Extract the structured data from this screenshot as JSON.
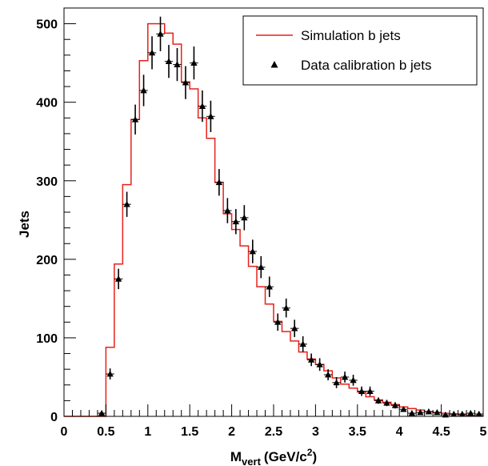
{
  "chart_data": {
    "type": "line",
    "xlabel": {
      "main": "M",
      "sub": "vert",
      "unit_pre": "(GeV/c",
      "unit_sup": "2",
      "unit_post": ")"
    },
    "ylabel": "Jets",
    "xlim": [
      0,
      5
    ],
    "ylim": [
      0,
      520
    ],
    "x_ticks": [
      "0",
      "0.5",
      "1",
      "1.5",
      "2",
      "2.5",
      "3",
      "3.5",
      "4",
      "4.5",
      "5"
    ],
    "y_ticks": [
      "0",
      "100",
      "200",
      "300",
      "400",
      "500"
    ],
    "grid": false,
    "legend_position": "top-right",
    "colors": {
      "simulation": "#e8201a",
      "data": "#000000"
    },
    "series": [
      {
        "name": "Simulation b jets",
        "kind": "histogram",
        "bin_width": 0.1,
        "x": [
          0,
          0.1,
          0.2,
          0.3,
          0.4,
          0.5,
          0.6,
          0.7,
          0.8,
          0.9,
          1.0,
          1.1,
          1.2,
          1.3,
          1.4,
          1.5,
          1.6,
          1.7,
          1.8,
          1.9,
          2.0,
          2.1,
          2.2,
          2.3,
          2.4,
          2.5,
          2.6,
          2.7,
          2.8,
          2.9,
          3.0,
          3.1,
          3.2,
          3.3,
          3.4,
          3.5,
          3.6,
          3.7,
          3.8,
          3.9,
          4.0,
          4.1,
          4.2,
          4.3,
          4.4,
          4.5,
          4.6,
          4.7,
          4.8,
          4.9
        ],
        "values": [
          0,
          0,
          0,
          0,
          0,
          88,
          194,
          295,
          378,
          453,
          500,
          500,
          488,
          474,
          426,
          417,
          380,
          354,
          298,
          258,
          238,
          217,
          191,
          165,
          143,
          121,
          108,
          96,
          82,
          73,
          66,
          58,
          49,
          41,
          36,
          31,
          25,
          21,
          18,
          15,
          12,
          10,
          8,
          6,
          5,
          4,
          3,
          2,
          1,
          1
        ]
      },
      {
        "name": "Data calibration b jets",
        "kind": "points_with_errors",
        "x": [
          0.45,
          0.55,
          0.65,
          0.75,
          0.85,
          0.95,
          1.05,
          1.15,
          1.25,
          1.35,
          1.45,
          1.55,
          1.65,
          1.75,
          1.85,
          1.95,
          2.05,
          2.15,
          2.25,
          2.35,
          2.45,
          2.55,
          2.65,
          2.75,
          2.85,
          2.95,
          3.05,
          3.15,
          3.25,
          3.35,
          3.45,
          3.55,
          3.65,
          3.75,
          3.85,
          3.95,
          4.05,
          4.15,
          4.25,
          4.35,
          4.45,
          4.55,
          4.65,
          4.75,
          4.85,
          4.95
        ],
        "values": [
          4,
          54,
          175,
          270,
          378,
          415,
          463,
          487,
          452,
          448,
          425,
          450,
          395,
          382,
          298,
          262,
          248,
          253,
          210,
          190,
          165,
          120,
          138,
          112,
          92,
          72,
          66,
          53,
          43,
          50,
          46,
          32,
          32,
          20,
          17,
          14,
          9,
          4,
          5,
          6,
          5,
          2,
          3,
          3,
          4,
          3
        ],
        "errors": [
          2,
          7,
          13,
          16,
          19,
          20,
          21,
          22,
          21,
          21,
          21,
          21,
          20,
          20,
          17,
          16,
          16,
          16,
          15,
          14,
          13,
          11,
          12,
          11,
          10,
          8,
          8,
          7,
          7,
          7,
          7,
          6,
          6,
          4,
          4,
          4,
          3,
          2,
          2,
          2,
          2,
          1,
          2,
          2,
          2,
          2
        ]
      }
    ]
  }
}
